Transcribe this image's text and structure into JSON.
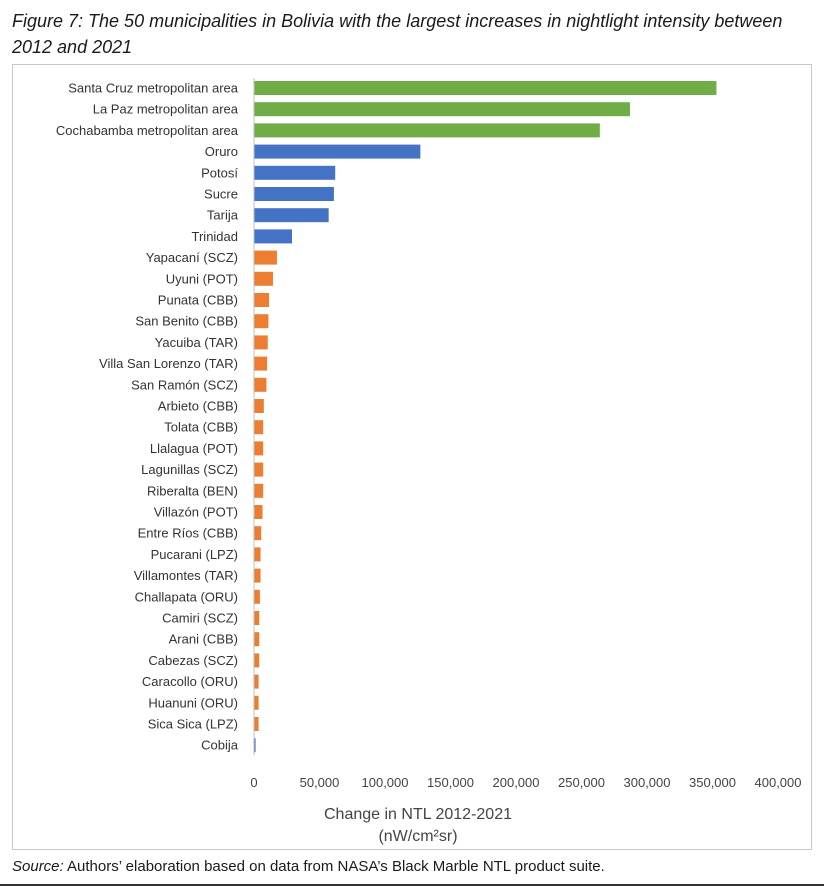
{
  "figure": {
    "caption": "Figure 7: The 50 municipalities in Bolivia with the largest increases in nightlight intensity between 2012 and 2021",
    "source_label": "Source:",
    "source_text": " Authors’ elaboration based on data from NASA’s Black Marble NTL product suite."
  },
  "chart_data": {
    "type": "bar",
    "orientation": "horizontal",
    "xlabel": "Change in NTL 2012-2021",
    "xlabel_unit": "(nW/cm²sr)",
    "xlim": [
      0,
      400000
    ],
    "xticks": [
      "0",
      "50,000",
      "100,000",
      "150,000",
      "200,000",
      "250,000",
      "300,000",
      "350,000",
      "400,000"
    ],
    "grid": false,
    "legend": "none",
    "colors": {
      "metro": "#70ad47",
      "city": "#4472c4",
      "municipality": "#ed7d31"
    },
    "bars": [
      {
        "category": "Santa Cruz metropolitan area",
        "value": 353000,
        "group": "metro"
      },
      {
        "category": "La Paz metropolitan area",
        "value": 287000,
        "group": "metro"
      },
      {
        "category": "Cochabamba metropolitan area",
        "value": 264000,
        "group": "metro"
      },
      {
        "category": "Oruro",
        "value": 127000,
        "group": "city"
      },
      {
        "category": "Potosí",
        "value": 62000,
        "group": "city"
      },
      {
        "category": "Sucre",
        "value": 61000,
        "group": "city"
      },
      {
        "category": "Tarija",
        "value": 57000,
        "group": "city"
      },
      {
        "category": "Trinidad",
        "value": 29000,
        "group": "city"
      },
      {
        "category": "Yapacaní (SCZ)",
        "value": 17500,
        "group": "municipality"
      },
      {
        "category": "Uyuni (POT)",
        "value": 14500,
        "group": "municipality"
      },
      {
        "category": "Punata (CBB)",
        "value": 11500,
        "group": "municipality"
      },
      {
        "category": "San Benito (CBB)",
        "value": 11000,
        "group": "municipality"
      },
      {
        "category": "Yacuiba (TAR)",
        "value": 10500,
        "group": "municipality"
      },
      {
        "category": "Villa San Lorenzo (TAR)",
        "value": 10000,
        "group": "municipality"
      },
      {
        "category": "San Ramón (SCZ)",
        "value": 9500,
        "group": "municipality"
      },
      {
        "category": "Arbieto (CBB)",
        "value": 7500,
        "group": "municipality"
      },
      {
        "category": "Tolata (CBB)",
        "value": 7000,
        "group": "municipality"
      },
      {
        "category": "Llalagua (POT)",
        "value": 7000,
        "group": "municipality"
      },
      {
        "category": "Lagunillas (SCZ)",
        "value": 7000,
        "group": "municipality"
      },
      {
        "category": "Riberalta (BEN)",
        "value": 7000,
        "group": "municipality"
      },
      {
        "category": "Villazón (POT)",
        "value": 6500,
        "group": "municipality"
      },
      {
        "category": "Entre Ríos (CBB)",
        "value": 5500,
        "group": "municipality"
      },
      {
        "category": "Pucarani (LPZ)",
        "value": 5000,
        "group": "municipality"
      },
      {
        "category": "Villamontes (TAR)",
        "value": 5000,
        "group": "municipality"
      },
      {
        "category": "Challapata (ORU)",
        "value": 4500,
        "group": "municipality"
      },
      {
        "category": "Camiri (SCZ)",
        "value": 4000,
        "group": "municipality"
      },
      {
        "category": "Arani (CBB)",
        "value": 4000,
        "group": "municipality"
      },
      {
        "category": "Cabezas (SCZ)",
        "value": 4000,
        "group": "municipality"
      },
      {
        "category": "Caracollo (ORU)",
        "value": 3500,
        "group": "municipality"
      },
      {
        "category": "Huanuni (ORU)",
        "value": 3500,
        "group": "municipality"
      },
      {
        "category": "Sica Sica (LPZ)",
        "value": 3500,
        "group": "municipality"
      },
      {
        "category": "Cobija",
        "value": 1200,
        "group": "city"
      }
    ]
  }
}
